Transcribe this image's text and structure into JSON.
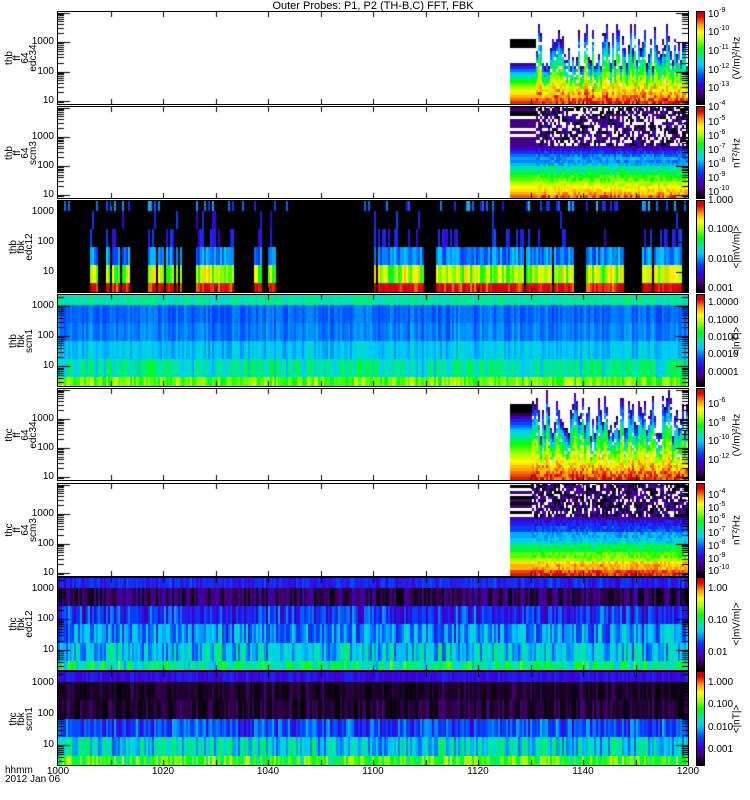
{
  "title": "Outer Probes: P1, P2 (TH-B,C) FFT, FBK",
  "xaxis": {
    "label_line1": "hhmm",
    "label_line2": "2012 Jan 06",
    "ticks": [
      "1000",
      "1020",
      "1040",
      "1100",
      "1120",
      "1140",
      "1200"
    ],
    "range": [
      "1000",
      "1200"
    ]
  },
  "chart_data": {
    "type": "heatmap",
    "title": "Outer Probes: P1, P2 (TH-B,C) FFT, FBK",
    "xlabel": "hhmm",
    "date": "2012 Jan 06",
    "panels": [
      {
        "probe_label": [
          "thb",
          "ff",
          "64",
          "edc34"
        ],
        "kind": "fft_e",
        "data_start": "1126",
        "smooth_until": "1131",
        "initial_cut_hz": 200,
        "line_hz": 850,
        "cut_range_hz": [
          150,
          5000
        ],
        "ylim_hz": [
          7.9,
          10500
        ],
        "yticks": [
          "10",
          "100",
          "1000"
        ],
        "yticks_hz": [
          10,
          100,
          1000
        ],
        "zlim_log10": [
          -13.8,
          -8.85
        ],
        "colorbar_unit": "(V/m)²/Hz",
        "colorbar_labels": [
          {
            "base": "10",
            "sup": "-9",
            "log10": -9
          },
          {
            "base": "10",
            "sup": "-10",
            "log10": -10
          },
          {
            "base": "10",
            "sup": "-11",
            "log10": -11
          },
          {
            "base": "10",
            "sup": "-12",
            "log10": -12
          },
          {
            "base": "10",
            "sup": "-13",
            "log10": -13
          }
        ]
      },
      {
        "probe_label": [
          "thb",
          "ff",
          "64",
          "scm3"
        ],
        "kind": "fft_b",
        "data_start": "1126",
        "smooth_until": "1131",
        "speckle_above_hz": 550,
        "white_fraction": 0.35,
        "ylim_hz": [
          7.9,
          10500
        ],
        "yticks": [
          "10",
          "100",
          "1000"
        ],
        "yticks_hz": [
          10,
          100,
          1000
        ],
        "zlim_log10": [
          -10.35,
          -3.9
        ],
        "colorbar_unit": "nT²/Hz",
        "colorbar_labels": [
          {
            "base": "10",
            "sup": "-4",
            "log10": -4
          },
          {
            "base": "10",
            "sup": "-5",
            "log10": -5
          },
          {
            "base": "10",
            "sup": "-6",
            "log10": -6
          },
          {
            "base": "10",
            "sup": "-7",
            "log10": -7
          },
          {
            "base": "10",
            "sup": "-8",
            "log10": -8
          },
          {
            "base": "10",
            "sup": "-9",
            "log10": -9
          },
          {
            "base": "10",
            "sup": "-10",
            "log10": -10
          }
        ]
      },
      {
        "probe_label": [
          "thb",
          "fbk",
          "edc12"
        ],
        "kind": "fbk",
        "ylim_hz": [
          2.2,
          2300
        ],
        "yticks": [
          "10",
          "100",
          "1000"
        ],
        "yticks_hz": [
          10,
          100,
          1000
        ],
        "zlim_log10": [
          -3.1,
          0.0
        ],
        "colorbar_unit": "<|mV/m|>",
        "colorbar_labels": [
          {
            "text": "1.000",
            "log10": 0
          },
          {
            "text": "0.100",
            "log10": -1
          },
          {
            "text": "0.010",
            "log10": -2
          },
          {
            "text": "0.001",
            "log10": -3
          }
        ],
        "segments": [
          [
            "1006",
            "1007"
          ],
          [
            "1009",
            "1013"
          ],
          [
            "1017",
            "1018"
          ],
          [
            "1019",
            "1023"
          ],
          [
            "1026",
            "1033"
          ],
          [
            "1037",
            "1038"
          ],
          [
            "1040",
            "1041"
          ],
          [
            "1100",
            "1109"
          ],
          [
            "1112",
            "1128"
          ],
          [
            "1129",
            "1138"
          ],
          [
            "1140",
            "1147"
          ],
          [
            "1151",
            "1158"
          ]
        ],
        "rows": [
          {
            "hz": [
              2.2,
              4.2
            ],
            "level": 0.95,
            "jitter": 0.05
          },
          {
            "hz": [
              4.2,
              17
            ],
            "level": 0.7,
            "jitter": 0.12
          },
          {
            "hz": [
              17,
              67
            ],
            "level": 0.36,
            "jitter": 0.08
          },
          {
            "hz": [
              67,
              270
            ],
            "level": 0.24,
            "jitter": 0.04,
            "spike_prob": 0.3
          },
          {
            "hz": [
              270,
              1075
            ],
            "level": 0.24,
            "jitter": 0.04,
            "spike_prob": 0.07
          },
          {
            "hz": [
              1075,
              2300
            ],
            "level": 0.33,
            "jitter": 0.1,
            "spike_prob": 0.3,
            "off_spike_prob": 0.08
          }
        ]
      },
      {
        "probe_label": [
          "thb",
          "fbk",
          "scm1"
        ],
        "kind": "fbk",
        "ylim_hz": [
          2.2,
          2300
        ],
        "yticks": [
          "10",
          "100",
          "1000"
        ],
        "yticks_hz": [
          10,
          100,
          1000
        ],
        "zlim_log10": [
          -4.75,
          0.46
        ],
        "colorbar_unit": "<|nT|>",
        "colorbar_labels": [
          {
            "text": "1.0000",
            "log10": 0
          },
          {
            "text": "0.1000",
            "log10": -1
          },
          {
            "text": "0.0100",
            "log10": -2
          },
          {
            "text": "0.0010",
            "log10": -3
          },
          {
            "text": "0.0001",
            "log10": -4
          }
        ],
        "rows": [
          {
            "hz": [
              2.2,
              4.2
            ],
            "level": 0.66,
            "jitter": 0.08
          },
          {
            "hz": [
              4.2,
              17
            ],
            "level": 0.5,
            "jitter": 0.08
          },
          {
            "hz": [
              17,
              67
            ],
            "level": 0.42,
            "jitter": 0.03
          },
          {
            "hz": [
              67,
              270
            ],
            "level": 0.35,
            "jitter": 0.02
          },
          {
            "hz": [
              270,
              1075
            ],
            "level": 0.33,
            "jitter": 0.01
          },
          {
            "hz": [
              1075,
              2300
            ],
            "level": 0.5,
            "jitter": 0.01
          }
        ]
      },
      {
        "probe_label": [
          "thc",
          "ff",
          "64",
          "edc34"
        ],
        "kind": "fft_e",
        "data_start": "1126",
        "smooth_until": "1130",
        "initial_cut_hz": 1500,
        "line_hz": 2000,
        "cut_range_hz": [
          250,
          10000
        ],
        "ylim_hz": [
          7.9,
          10500
        ],
        "yticks": [
          "10",
          "100",
          "1000"
        ],
        "yticks_hz": [
          10,
          100,
          1000
        ],
        "zlim_log10": [
          -14.0,
          -4.3
        ],
        "colorbar_unit": "(V/m)²/Hz",
        "colorbar_labels": [
          {
            "base": "10",
            "sup": "-6",
            "log10": -6
          },
          {
            "base": "10",
            "sup": "-8",
            "log10": -8
          },
          {
            "base": "10",
            "sup": "-10",
            "log10": -10
          },
          {
            "base": "10",
            "sup": "-12",
            "log10": -12
          }
        ]
      },
      {
        "probe_label": [
          "thc",
          "ff",
          "64",
          "scm3"
        ],
        "kind": "fft_b",
        "data_start": "1126",
        "smooth_until": "1130",
        "speckle_above_hz": 800,
        "white_fraction": 0.25,
        "ylim_hz": [
          7.9,
          10500
        ],
        "yticks": [
          "10",
          "100",
          "1000"
        ],
        "yticks_hz": [
          10,
          100,
          1000
        ],
        "zlim_log10": [
          -10.3,
          -3.05
        ],
        "colorbar_unit": "nT²/Hz",
        "colorbar_labels": [
          {
            "base": "10",
            "sup": "-4",
            "log10": -4
          },
          {
            "base": "10",
            "sup": "-5",
            "log10": -5
          },
          {
            "base": "10",
            "sup": "-6",
            "log10": -6
          },
          {
            "base": "10",
            "sup": "-7",
            "log10": -7
          },
          {
            "base": "10",
            "sup": "-8",
            "log10": -8
          },
          {
            "base": "10",
            "sup": "-9",
            "log10": -9
          },
          {
            "base": "10",
            "sup": "-10",
            "log10": -10
          }
        ]
      },
      {
        "probe_label": [
          "thc",
          "fbk",
          "edc12"
        ],
        "kind": "fbk",
        "ylim_hz": [
          2.2,
          2300
        ],
        "yticks": [
          "10",
          "100",
          "1000"
        ],
        "yticks_hz": [
          10,
          100,
          1000
        ],
        "zlim_log10": [
          -2.53,
          0.34
        ],
        "colorbar_unit": "<|mV/m|>",
        "colorbar_labels": [
          {
            "text": "1.00",
            "log10": 0
          },
          {
            "text": "0.10",
            "log10": -1
          },
          {
            "text": "0.01",
            "log10": -2
          }
        ],
        "rows": [
          {
            "hz": [
              2.2,
              4.2
            ],
            "level": 0.52,
            "jitter": 0.12
          },
          {
            "hz": [
              4.2,
              17
            ],
            "level": 0.42,
            "jitter": 0.12
          },
          {
            "hz": [
              17,
              67
            ],
            "level": 0.36,
            "jitter": 0.12
          },
          {
            "hz": [
              67,
              270
            ],
            "level": 0.26,
            "jitter": 0.1
          },
          {
            "hz": [
              270,
              1075
            ],
            "level": 0.08,
            "jitter": 0.09
          },
          {
            "hz": [
              1075,
              2300
            ],
            "level": 0.25,
            "jitter": 0.04
          }
        ]
      },
      {
        "probe_label": [
          "thc",
          "fbk",
          "scm1"
        ],
        "kind": "fbk",
        "ylim_hz": [
          2.2,
          2300
        ],
        "yticks": [
          "10",
          "100",
          "1000"
        ],
        "yticks_hz": [
          10,
          100,
          1000
        ],
        "zlim_log10": [
          -3.65,
          0.49
        ],
        "colorbar_unit": "<|nT|>",
        "colorbar_labels": [
          {
            "text": "1.000",
            "log10": 0
          },
          {
            "text": "0.100",
            "log10": -1
          },
          {
            "text": "0.010",
            "log10": -2
          },
          {
            "text": "0.001",
            "log10": -3
          }
        ],
        "rows": [
          {
            "hz": [
              2.2,
              4.2
            ],
            "level": 0.62,
            "jitter": 0.12
          },
          {
            "hz": [
              4.2,
              17
            ],
            "level": 0.45,
            "jitter": 0.12
          },
          {
            "hz": [
              17,
              67
            ],
            "level": 0.3,
            "jitter": 0.1
          },
          {
            "hz": [
              67,
              270
            ],
            "level": 0.05,
            "jitter": 0.05
          },
          {
            "hz": [
              270,
              1075
            ],
            "level": 0.04,
            "jitter": 0.03
          },
          {
            "hz": [
              1075,
              2300
            ],
            "level": 0.22,
            "jitter": 0.01
          }
        ]
      }
    ]
  }
}
